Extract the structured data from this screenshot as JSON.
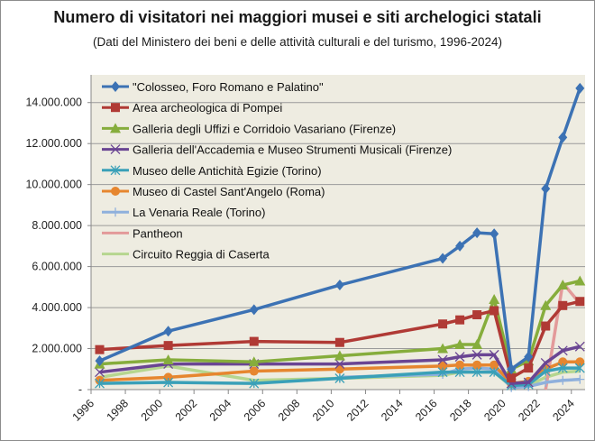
{
  "chart_data": {
    "type": "line",
    "title": "Numero di visitatori nei maggiori musei e siti archelogici statali",
    "subtitle": "(Dati del Ministero dei beni e delle attività culturali e del turismo, 1996-2024)",
    "xlabel": "",
    "ylabel": "",
    "x": [
      1996,
      2000,
      2005,
      2010,
      2016,
      2017,
      2018,
      2019,
      2020,
      2021,
      2022,
      2023,
      2024
    ],
    "xticks": [
      "1996",
      "1998",
      "2000",
      "2002",
      "2004",
      "2006",
      "2008",
      "2010",
      "2012",
      "2014",
      "2016",
      "2018",
      "2020",
      "2022",
      "2024"
    ],
    "yticks": [
      "-",
      "2.000.000",
      "4.000.000",
      "6.000.000",
      "8.000.000",
      "10.000.000",
      "12.000.000",
      "14.000.000"
    ],
    "ylim": [
      0,
      15000000
    ],
    "grid": true,
    "legend_position": "top-left",
    "plot_background": "#eeece1",
    "series": [
      {
        "name": "\"Colosseo, Foro Romano e Palatino\"",
        "color": "#3c72b4",
        "marker": "diamond",
        "values": [
          1400000,
          2850000,
          3900000,
          5100000,
          6400000,
          7000000,
          7650000,
          7600000,
          1000000,
          1600000,
          9800000,
          12300000,
          14700000
        ]
      },
      {
        "name": "Area archeologica di Pompei",
        "color": "#b03a35",
        "marker": "square",
        "values": [
          1950000,
          2150000,
          2350000,
          2300000,
          3200000,
          3400000,
          3650000,
          3850000,
          570000,
          1050000,
          3100000,
          4100000,
          4300000
        ]
      },
      {
        "name": "Galleria degli Uffizi e Corridoio Vasariano (Firenze)",
        "color": "#86ad3c",
        "marker": "triangle",
        "values": [
          1250000,
          1450000,
          1350000,
          1650000,
          2000000,
          2200000,
          2200000,
          4400000,
          1000000,
          1400000,
          4100000,
          5100000,
          5300000
        ]
      },
      {
        "name": "Galleria dell'Accademia e Museo Strumenti Musicali (Firenze)",
        "color": "#6a4593",
        "marker": "x",
        "values": [
          850000,
          1250000,
          1250000,
          1250000,
          1450000,
          1600000,
          1700000,
          1700000,
          300000,
          350000,
          1300000,
          1900000,
          2100000
        ]
      },
      {
        "name": "Museo delle Antichità Egizie (Torino)",
        "color": "#3aa0b8",
        "marker": "star",
        "values": [
          300000,
          350000,
          300000,
          550000,
          850000,
          850000,
          850000,
          850000,
          200000,
          250000,
          900000,
          1050000,
          1050000
        ]
      },
      {
        "name": "Museo di Castel Sant'Angelo (Roma)",
        "color": "#e6862f",
        "marker": "circle",
        "values": [
          450000,
          600000,
          900000,
          1000000,
          1150000,
          1200000,
          1200000,
          1200000,
          300000,
          400000,
          1000000,
          1350000,
          1350000
        ]
      },
      {
        "name": "La Venaria Reale (Torino)",
        "color": "#8fb0dc",
        "marker": "plus",
        "values": [
          null,
          null,
          null,
          600000,
          750000,
          1000000,
          1050000,
          1000000,
          100000,
          150000,
          350000,
          450000,
          500000
        ]
      },
      {
        "name": "Pantheon",
        "color": "#e39a9a",
        "marker": "none",
        "values": [
          null,
          null,
          null,
          null,
          null,
          null,
          null,
          null,
          null,
          null,
          0,
          5200000,
          4200000
        ]
      },
      {
        "name": "Circuito Reggia di Caserta",
        "color": "#b6d68f",
        "marker": "none",
        "values": [
          600000,
          1150000,
          450000,
          550000,
          700000,
          850000,
          850000,
          850000,
          150000,
          200000,
          600000,
          850000,
          900000
        ]
      }
    ]
  }
}
